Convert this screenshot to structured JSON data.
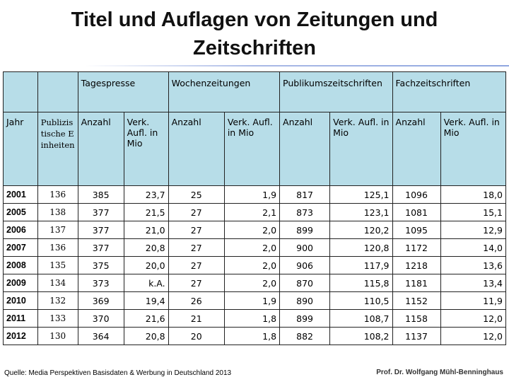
{
  "title": "Titel und Auflagen von Zeitungen und Zeitschriften",
  "table": {
    "groups": [
      "Tagespresse",
      "Wochenzeitungen",
      "Publikumszeitschriften",
      "Fachzeitschriften"
    ],
    "subheaders": {
      "jahr": "Jahr",
      "publizistische": "Publizistische Einheiten",
      "anzahl": "Anzahl",
      "verk_tages": "Verk. Aufl. in Mio",
      "verk_woche": "Verk. Aufl. in Mio",
      "verk_publikum": "Verk. Aufl. in Mio",
      "verk_fach": "Verk. Aufl. in Mio"
    },
    "rows": [
      {
        "year": "2001",
        "pe": "136",
        "t_anz": "385",
        "t_aufl": "23,7",
        "w_anz": "25",
        "w_aufl": "1,9",
        "p_anz": "817",
        "p_aufl": "125,1",
        "f_anz": "1096",
        "f_aufl": "18,0"
      },
      {
        "year": "2005",
        "pe": "138",
        "t_anz": "377",
        "t_aufl": "21,5",
        "w_anz": "27",
        "w_aufl": "2,1",
        "p_anz": "873",
        "p_aufl": "123,1",
        "f_anz": "1081",
        "f_aufl": "15,1"
      },
      {
        "year": "2006",
        "pe": "137",
        "t_anz": "377",
        "t_aufl": "21,0",
        "w_anz": "27",
        "w_aufl": "2,0",
        "p_anz": "899",
        "p_aufl": "120,2",
        "f_anz": "1095",
        "f_aufl": "12,9"
      },
      {
        "year": "2007",
        "pe": "136",
        "t_anz": "377",
        "t_aufl": "20,8",
        "w_anz": "27",
        "w_aufl": "2,0",
        "p_anz": "900",
        "p_aufl": "120,8",
        "f_anz": "1172",
        "f_aufl": "14,0"
      },
      {
        "year": "2008",
        "pe": "135",
        "t_anz": "375",
        "t_aufl": "20,0",
        "w_anz": "27",
        "w_aufl": "2,0",
        "p_anz": "906",
        "p_aufl": "117,9",
        "f_anz": "1218",
        "f_aufl": "13,6"
      },
      {
        "year": "2009",
        "pe": "134",
        "t_anz": "373",
        "t_aufl": "k.A.",
        "w_anz": "27",
        "w_aufl": "2,0",
        "p_anz": "870",
        "p_aufl": "115,8",
        "f_anz": "1181",
        "f_aufl": "13,4"
      },
      {
        "year": "2010",
        "pe": "132",
        "t_anz": "369",
        "t_aufl": "19,4",
        "w_anz": "26",
        "w_aufl": "1,9",
        "p_anz": "890",
        "p_aufl": "110,5",
        "f_anz": "1152",
        "f_aufl": "11,9"
      },
      {
        "year": "2011",
        "pe": "133",
        "t_anz": "370",
        "t_aufl": "21,6",
        "w_anz": "21",
        "w_aufl": "1,8",
        "p_anz": "899",
        "p_aufl": "108,7",
        "f_anz": "1158",
        "f_aufl": "12,0"
      },
      {
        "year": "2012",
        "pe": "130",
        "t_anz": "364",
        "t_aufl": "20,8",
        "w_anz": "20",
        "w_aufl": "1,8",
        "p_anz": "882",
        "p_aufl": "108,2",
        "f_anz": "1137",
        "f_aufl": "12,0"
      }
    ]
  },
  "footer": {
    "source": "Quelle: Media Perspektiven Basisdaten & Werbung in Deutschland 2013",
    "author": "Prof. Dr. Wolfgang Mühl-Benninghaus"
  }
}
